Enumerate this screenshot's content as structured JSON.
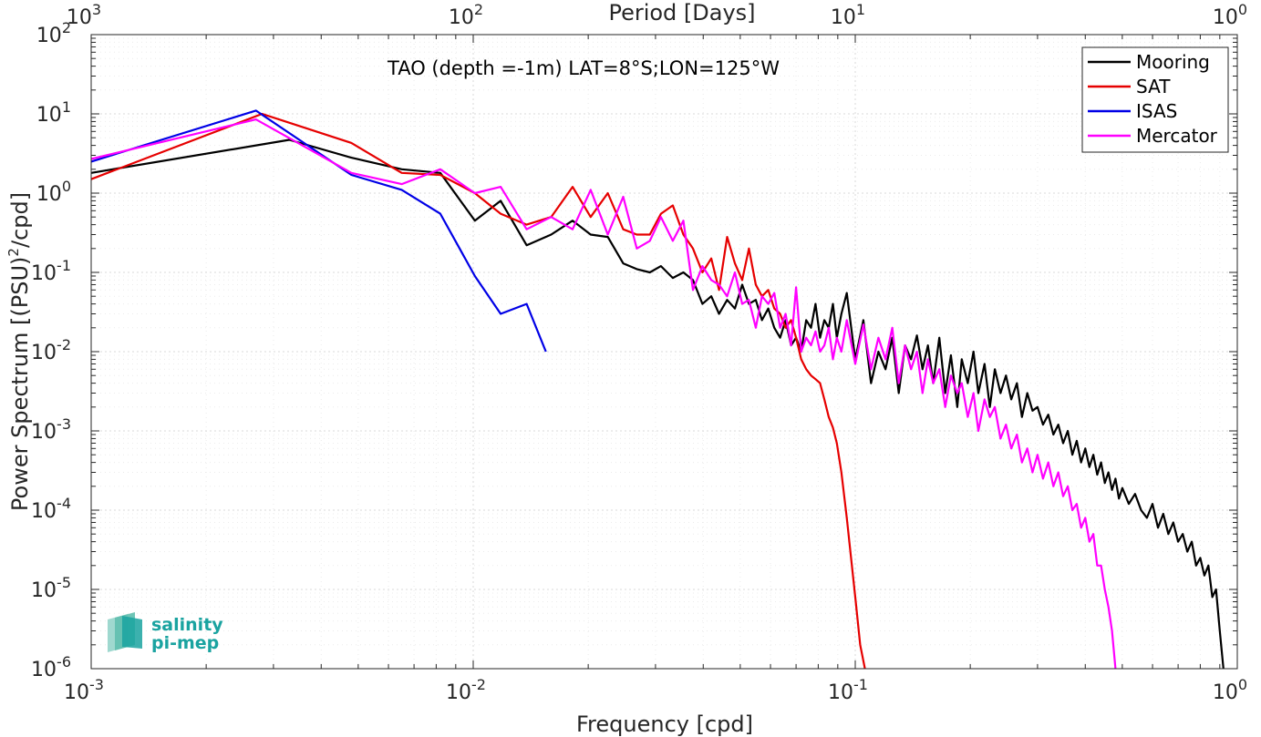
{
  "chart_data": {
    "type": "line",
    "title": "TAO (depth =-1m) LAT=8°S;LON=125°W",
    "xlabel": "Frequency [cpd]",
    "ylabel_main": "Power Spectrum [(PSU)",
    "ylabel_sup": "2",
    "ylabel_tail": "/cpd]",
    "top_xlabel": "Period [Days]",
    "x_scale": "log",
    "y_scale": "log",
    "xlim": [
      0.001,
      1
    ],
    "ylim": [
      1e-06,
      100
    ],
    "grid": true,
    "legend_position": "top-right",
    "x_ticks": [
      {
        "value": 0.001,
        "base": "10",
        "exp": "-3"
      },
      {
        "value": 0.01,
        "base": "10",
        "exp": "-2"
      },
      {
        "value": 0.1,
        "base": "10",
        "exp": "-1"
      },
      {
        "value": 1,
        "base": "10",
        "exp": "0"
      }
    ],
    "top_ticks": [
      {
        "value": 0.001,
        "base": "10",
        "exp": "3"
      },
      {
        "value": 0.01,
        "base": "10",
        "exp": "2"
      },
      {
        "value": 0.1,
        "base": "10",
        "exp": "1"
      },
      {
        "value": 1,
        "base": "10",
        "exp": "0"
      }
    ],
    "y_ticks": [
      {
        "value": 100,
        "base": "10",
        "exp": "2"
      },
      {
        "value": 10,
        "base": "10",
        "exp": "1"
      },
      {
        "value": 1,
        "base": "10",
        "exp": "0"
      },
      {
        "value": 0.1,
        "base": "10",
        "exp": "-1"
      },
      {
        "value": 0.01,
        "base": "10",
        "exp": "-2"
      },
      {
        "value": 0.001,
        "base": "10",
        "exp": "-3"
      },
      {
        "value": 0.0001,
        "base": "10",
        "exp": "-4"
      },
      {
        "value": 1e-05,
        "base": "10",
        "exp": "-5"
      },
      {
        "value": 1e-06,
        "base": "10",
        "exp": "-6"
      }
    ],
    "series": [
      {
        "name": "Mooring",
        "color": "#000000",
        "x": [
          0.001,
          0.0033,
          0.0048,
          0.0065,
          0.0082,
          0.0101,
          0.0118,
          0.0138,
          0.016,
          0.0182,
          0.0203,
          0.0225,
          0.0247,
          0.0268,
          0.029,
          0.031,
          0.0333,
          0.0355,
          0.0376,
          0.0398,
          0.042,
          0.044,
          0.0462,
          0.0484,
          0.0506,
          0.0527,
          0.0549,
          0.057,
          0.0592,
          0.0614,
          0.0636,
          0.0657,
          0.0679,
          0.07,
          0.0722,
          0.0744,
          0.0766,
          0.0787,
          0.0809,
          0.083,
          0.0852,
          0.0874,
          0.0895,
          0.092,
          0.095,
          0.1,
          0.105,
          0.11,
          0.115,
          0.12,
          0.125,
          0.13,
          0.135,
          0.14,
          0.145,
          0.15,
          0.155,
          0.16,
          0.166,
          0.172,
          0.178,
          0.185,
          0.19,
          0.197,
          0.204,
          0.21,
          0.218,
          0.225,
          0.232,
          0.24,
          0.248,
          0.256,
          0.265,
          0.273,
          0.282,
          0.291,
          0.3,
          0.31,
          0.32,
          0.33,
          0.34,
          0.35,
          0.36,
          0.37,
          0.38,
          0.39,
          0.4,
          0.41,
          0.42,
          0.43,
          0.44,
          0.45,
          0.46,
          0.47,
          0.48,
          0.49,
          0.5,
          0.52,
          0.54,
          0.56,
          0.58,
          0.6,
          0.62,
          0.64,
          0.66,
          0.68,
          0.7,
          0.72,
          0.74,
          0.76,
          0.78,
          0.8,
          0.82,
          0.84,
          0.86,
          0.88,
          0.9,
          0.92
        ],
        "y": [
          1.8,
          4.7,
          2.8,
          2.0,
          1.8,
          0.45,
          0.8,
          0.22,
          0.3,
          0.45,
          0.3,
          0.28,
          0.13,
          0.11,
          0.1,
          0.12,
          0.085,
          0.1,
          0.08,
          0.04,
          0.05,
          0.03,
          0.045,
          0.035,
          0.07,
          0.04,
          0.045,
          0.025,
          0.035,
          0.02,
          0.015,
          0.025,
          0.012,
          0.015,
          0.01,
          0.025,
          0.02,
          0.04,
          0.015,
          0.025,
          0.02,
          0.04,
          0.015,
          0.03,
          0.055,
          0.008,
          0.025,
          0.004,
          0.01,
          0.006,
          0.015,
          0.003,
          0.012,
          0.008,
          0.016,
          0.006,
          0.012,
          0.004,
          0.015,
          0.003,
          0.009,
          0.002,
          0.008,
          0.004,
          0.01,
          0.003,
          0.007,
          0.002,
          0.006,
          0.003,
          0.005,
          0.0025,
          0.004,
          0.0015,
          0.003,
          0.0018,
          0.002,
          0.0012,
          0.0016,
          0.0009,
          0.0012,
          0.0007,
          0.001,
          0.0005,
          0.00075,
          0.0004,
          0.0006,
          0.00035,
          0.0005,
          0.00028,
          0.0004,
          0.00022,
          0.0003,
          0.00018,
          0.00025,
          0.00014,
          0.00019,
          0.00012,
          0.00016,
          0.0001,
          8e-05,
          0.00012,
          6e-05,
          9e-05,
          5e-05,
          7e-05,
          4e-05,
          5e-05,
          3e-05,
          4e-05,
          2e-05,
          2.5e-05,
          1.5e-05,
          2e-05,
          8e-06,
          1e-05,
          3e-06,
          1e-06
        ]
      },
      {
        "name": "SAT",
        "color": "#e60000",
        "x": [
          0.001,
          0.0028,
          0.0048,
          0.0065,
          0.0082,
          0.0101,
          0.0118,
          0.0138,
          0.016,
          0.0182,
          0.0203,
          0.0225,
          0.0247,
          0.0268,
          0.029,
          0.031,
          0.0333,
          0.0355,
          0.0376,
          0.0398,
          0.042,
          0.044,
          0.0462,
          0.0484,
          0.0506,
          0.0527,
          0.0549,
          0.057,
          0.0592,
          0.0614,
          0.0636,
          0.0657,
          0.0679,
          0.07,
          0.0722,
          0.0744,
          0.0766,
          0.0787,
          0.0809,
          0.083,
          0.0852,
          0.0874,
          0.0895,
          0.092,
          0.095,
          0.098,
          0.1,
          0.103,
          0.106
        ],
        "y": [
          1.5,
          10,
          4.3,
          1.8,
          1.7,
          1.0,
          0.55,
          0.4,
          0.5,
          1.2,
          0.5,
          1.0,
          0.35,
          0.3,
          0.3,
          0.55,
          0.7,
          0.3,
          0.2,
          0.1,
          0.15,
          0.06,
          0.28,
          0.13,
          0.08,
          0.2,
          0.07,
          0.05,
          0.06,
          0.035,
          0.03,
          0.02,
          0.025,
          0.015,
          0.008,
          0.006,
          0.005,
          0.0045,
          0.004,
          0.0025,
          0.0015,
          0.0011,
          0.0007,
          0.0003,
          8e-05,
          2e-05,
          8e-06,
          2e-06,
          1e-06
        ]
      },
      {
        "name": "ISAS",
        "color": "#0000e6",
        "x": [
          0.001,
          0.0027,
          0.0048,
          0.0065,
          0.0082,
          0.0101,
          0.0118,
          0.0138,
          0.0155
        ],
        "y": [
          2.5,
          11,
          1.7,
          1.1,
          0.55,
          0.09,
          0.03,
          0.04,
          0.01
        ]
      },
      {
        "name": "Mercator",
        "color": "#ff00ff",
        "x": [
          0.001,
          0.0027,
          0.0048,
          0.0065,
          0.0082,
          0.0101,
          0.0118,
          0.0138,
          0.016,
          0.0182,
          0.0203,
          0.0225,
          0.0247,
          0.0268,
          0.029,
          0.031,
          0.0333,
          0.0355,
          0.0376,
          0.0398,
          0.042,
          0.044,
          0.0462,
          0.0484,
          0.0506,
          0.0527,
          0.0549,
          0.057,
          0.0592,
          0.0614,
          0.0636,
          0.0657,
          0.0679,
          0.07,
          0.0722,
          0.0744,
          0.0766,
          0.0787,
          0.0809,
          0.083,
          0.0852,
          0.0874,
          0.0895,
          0.092,
          0.095,
          0.1,
          0.105,
          0.11,
          0.115,
          0.12,
          0.125,
          0.13,
          0.135,
          0.14,
          0.145,
          0.15,
          0.155,
          0.16,
          0.166,
          0.172,
          0.178,
          0.185,
          0.19,
          0.197,
          0.204,
          0.21,
          0.218,
          0.225,
          0.232,
          0.24,
          0.248,
          0.256,
          0.265,
          0.273,
          0.282,
          0.291,
          0.3,
          0.31,
          0.32,
          0.33,
          0.34,
          0.35,
          0.36,
          0.37,
          0.38,
          0.39,
          0.4,
          0.41,
          0.42,
          0.43,
          0.44,
          0.45,
          0.46,
          0.47,
          0.48
        ],
        "y": [
          2.7,
          8.5,
          1.8,
          1.3,
          2.0,
          1.0,
          1.2,
          0.35,
          0.5,
          0.35,
          1.1,
          0.3,
          0.9,
          0.2,
          0.25,
          0.5,
          0.25,
          0.45,
          0.06,
          0.12,
          0.08,
          0.07,
          0.05,
          0.1,
          0.04,
          0.045,
          0.02,
          0.05,
          0.04,
          0.055,
          0.02,
          0.03,
          0.012,
          0.065,
          0.01,
          0.015,
          0.012,
          0.018,
          0.01,
          0.012,
          0.02,
          0.008,
          0.015,
          0.01,
          0.025,
          0.007,
          0.022,
          0.006,
          0.015,
          0.008,
          0.02,
          0.004,
          0.012,
          0.006,
          0.01,
          0.003,
          0.008,
          0.004,
          0.006,
          0.002,
          0.005,
          0.003,
          0.004,
          0.0015,
          0.003,
          0.001,
          0.0025,
          0.0015,
          0.002,
          0.0008,
          0.0012,
          0.0006,
          0.0009,
          0.0004,
          0.0006,
          0.0003,
          0.0005,
          0.00025,
          0.0004,
          0.0002,
          0.0003,
          0.00015,
          0.0002,
          0.0001,
          0.00012,
          6e-05,
          8e-05,
          4e-05,
          5e-05,
          2e-05,
          2e-05,
          1e-05,
          6e-06,
          3e-06,
          1e-06
        ]
      }
    ]
  },
  "logo": {
    "line1": "salinity",
    "line2": "pi-mep",
    "color": "#1aa3a0"
  }
}
